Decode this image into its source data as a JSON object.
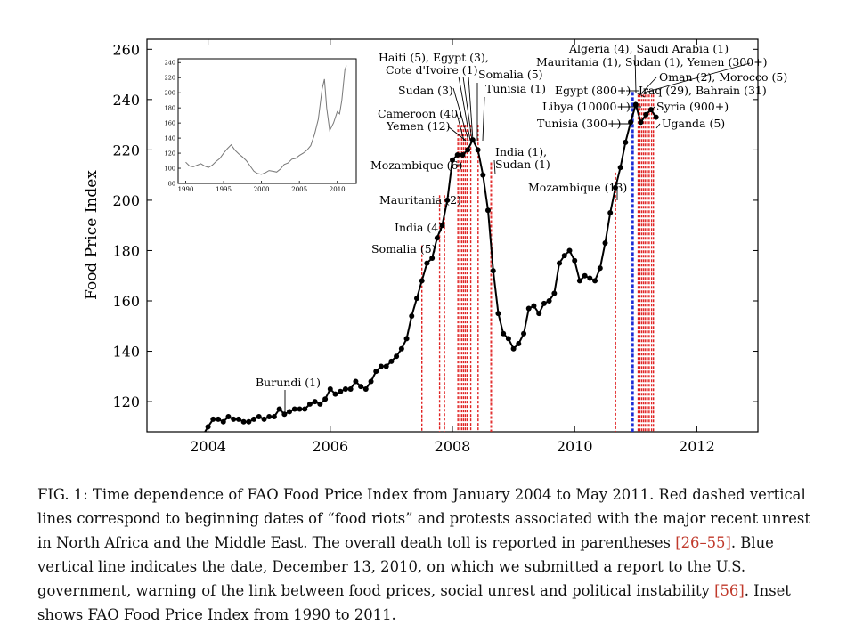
{
  "chart_data": [
    {
      "type": "line",
      "title": "",
      "xlabel": "",
      "ylabel": "Food Price Index",
      "xlim": [
        2003.0,
        2013.0
      ],
      "ylim": [
        108,
        264
      ],
      "x_ticks": [
        2004,
        2006,
        2008,
        2010,
        2012
      ],
      "x_tick_labels": [
        "2004",
        "2006",
        "2008",
        "2010",
        "2012"
      ],
      "y_ticks": [
        120,
        140,
        160,
        180,
        200,
        220,
        240,
        260
      ],
      "y_tick_labels": [
        "120",
        "140",
        "160",
        "180",
        "200",
        "220",
        "240",
        "260"
      ],
      "series": [
        {
          "name": "FAO Food Price Index",
          "x": [
            2004.0,
            2004.083,
            2004.167,
            2004.25,
            2004.333,
            2004.417,
            2004.5,
            2004.583,
            2004.667,
            2004.75,
            2004.833,
            2004.917,
            2005.0,
            2005.083,
            2005.167,
            2005.25,
            2005.333,
            2005.417,
            2005.5,
            2005.583,
            2005.667,
            2005.75,
            2005.833,
            2005.917,
            2006.0,
            2006.083,
            2006.167,
            2006.25,
            2006.333,
            2006.417,
            2006.5,
            2006.583,
            2006.667,
            2006.75,
            2006.833,
            2006.917,
            2007.0,
            2007.083,
            2007.167,
            2007.25,
            2007.333,
            2007.417,
            2007.5,
            2007.583,
            2007.667,
            2007.75,
            2007.833,
            2007.917,
            2008.0,
            2008.083,
            2008.167,
            2008.25,
            2008.333,
            2008.417,
            2008.5,
            2008.583,
            2008.667,
            2008.75,
            2008.833,
            2008.917,
            2009.0,
            2009.083,
            2009.167,
            2009.25,
            2009.333,
            2009.417,
            2009.5,
            2009.583,
            2009.667,
            2009.75,
            2009.833,
            2009.917,
            2010.0,
            2010.083,
            2010.167,
            2010.25,
            2010.333,
            2010.417,
            2010.5,
            2010.583,
            2010.667,
            2010.75,
            2010.833,
            2010.917,
            2011.0,
            2011.083,
            2011.167,
            2011.25,
            2011.333
          ],
          "y": [
            110,
            113,
            113,
            112,
            114,
            113,
            113,
            112,
            112,
            113,
            114,
            113,
            114,
            114,
            117,
            115,
            116,
            117,
            117,
            117,
            119,
            120,
            119,
            121,
            125,
            123,
            124,
            125,
            125,
            128,
            126,
            125,
            128,
            132,
            134,
            134,
            136,
            138,
            141,
            145,
            154,
            161,
            168,
            175,
            177,
            185,
            190,
            200,
            216,
            218,
            218,
            220,
            224,
            220,
            210,
            196,
            172,
            155,
            147,
            145,
            141,
            143,
            147,
            157,
            158,
            155,
            159,
            160,
            163,
            175,
            178,
            180,
            176,
            168,
            170,
            169,
            168,
            173,
            183,
            195,
            205,
            213,
            223,
            231,
            238,
            231,
            234,
            236,
            233
          ]
        }
      ],
      "red_lines": [
        2007.5,
        2007.79,
        2007.87,
        2008.09,
        2008.12,
        2008.15,
        2008.18,
        2008.21,
        2008.24,
        2008.3,
        2008.42,
        2008.63,
        2008.66,
        2010.67,
        2011.04,
        2011.07,
        2011.1,
        2011.13,
        2011.16,
        2011.19,
        2011.22,
        2011.26,
        2011.29
      ],
      "blue_lines": [
        2010.95
      ],
      "annotations": [
        {
          "label": "Burundi (1)",
          "x": 2005.25
        },
        {
          "label": "Somalia (5)",
          "x": 2007.5
        },
        {
          "label": "India (4)",
          "x": 2007.79
        },
        {
          "label": "Mauritania (2)",
          "x": 2007.87
        },
        {
          "label": "Mozambique (6)",
          "x": 2008.09
        },
        {
          "label": "Cameroon (40)",
          "x": 2008.15
        },
        {
          "label": "Yemen (12)",
          "x": 2008.18
        },
        {
          "label": "Sudan (3)",
          "x": 2008.21
        },
        {
          "label": "Haiti (5), Egypt (3),",
          "x": 2008.27
        },
        {
          "label": "Cote d'Ivoire (1)",
          "x": 2008.27
        },
        {
          "label": "Somalia (5)",
          "x": 2008.42
        },
        {
          "label": "Tunisia (1)",
          "x": 2008.42
        },
        {
          "label": "India (1),",
          "x": 2008.64
        },
        {
          "label": "Sudan (1)",
          "x": 2008.64
        },
        {
          "label": "Mozambique (13)",
          "x": 2010.67
        },
        {
          "label": "Algeria (4), Saudi Arabia (1)",
          "x": 2011.07
        },
        {
          "label": "Mauritania (1), Sudan (1), Yemen (300+)",
          "x": 2011.07
        },
        {
          "label": "Oman (2), Morocco (5)",
          "x": 2011.1
        },
        {
          "label": "Egypt (800+)",
          "x": 2011.07
        },
        {
          "label": "Iraq (29), Bahrain (31)",
          "x": 2011.1
        },
        {
          "label": "Libya (10000+)",
          "x": 2011.13
        },
        {
          "label": "Syria (900+)",
          "x": 2011.22
        },
        {
          "label": "Tunisia (300+)",
          "x": 2011.04
        },
        {
          "label": "Uganda (5)",
          "x": 2011.29
        }
      ]
    },
    {
      "type": "line",
      "title": "",
      "xlabel": "",
      "ylabel": "",
      "xlim": [
        1989,
        2012.5
      ],
      "ylim": [
        80,
        245
      ],
      "x_ticks": [
        1990,
        1995,
        2000,
        2005,
        2010
      ],
      "x_tick_labels": [
        "1990",
        "1995",
        "2000",
        "2005",
        "2010"
      ],
      "y_ticks": [
        80,
        100,
        120,
        140,
        160,
        180,
        200,
        220,
        240
      ],
      "y_tick_labels": [
        "80",
        "100",
        "120",
        "140",
        "160",
        "180",
        "200",
        "220",
        "240"
      ],
      "series": [
        {
          "name": "FAO Food Price Index 1990-2011",
          "x": [
            1990,
            1990.5,
            1991,
            1991.5,
            1992,
            1992.5,
            1993,
            1993.5,
            1994,
            1994.5,
            1995,
            1995.5,
            1996,
            1996.5,
            1997,
            1997.5,
            1998,
            1998.5,
            1999,
            1999.5,
            2000,
            2000.5,
            2001,
            2001.5,
            2002,
            2002.5,
            2003,
            2003.5,
            2004,
            2004.5,
            2005,
            2005.5,
            2006,
            2006.5,
            2007,
            2007.5,
            2008,
            2008.3,
            2008.6,
            2009,
            2009.5,
            2010,
            2010.3,
            2010.6,
            2011,
            2011.2
          ],
          "y": [
            108,
            103,
            102,
            104,
            106,
            103,
            101,
            104,
            109,
            113,
            120,
            126,
            131,
            124,
            119,
            115,
            110,
            103,
            96,
            93,
            92,
            94,
            97,
            96,
            95,
            99,
            105,
            107,
            112,
            113,
            117,
            120,
            124,
            130,
            145,
            165,
            205,
            218,
            180,
            150,
            160,
            175,
            172,
            190,
            230,
            236
          ]
        }
      ]
    }
  ],
  "caption": {
    "text": "FIG. 1: Time dependence of FAO Food Price Index from January 2004 to May 2011. Red dashed vertical lines correspond to beginning dates of “food riots” and protests associated with the major recent unrest in North Africa and the Middle East. The overall death toll is reported in parentheses ",
    "ref1": "[26–55]",
    "text2": ". Blue vertical line indicates the date, December 13, 2010, on which we submitted a report to the U.S. government, warning of the link between food prices, social unrest and political instability ",
    "ref2": "[56]",
    "text3": ". Inset shows FAO Food Price Index from 1990 to 2011."
  },
  "colors": {
    "line": "#000000",
    "marker": "#000000",
    "riot_line": "#e02020",
    "report_line": "#1a2bd6",
    "inset_line": "#777777",
    "ref": "#c0392b"
  }
}
